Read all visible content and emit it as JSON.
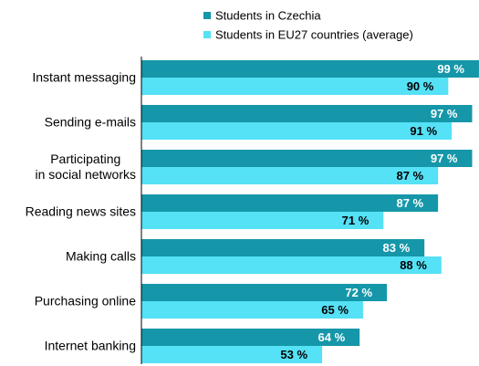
{
  "chart_data": {
    "type": "hbar",
    "categories": [
      "Instant messaging",
      "Sending e-mails",
      "Participating\nin social networks",
      "Reading news sites",
      "Making calls",
      "Purchasing online",
      "Internet banking"
    ],
    "series": [
      {
        "name": "Students in Czechia",
        "color": "#1597a9",
        "values": [
          99,
          97,
          97,
          87,
          83,
          72,
          64
        ],
        "value_labels": [
          "99 %",
          "97 %",
          "97 %",
          "87 %",
          "83 %",
          "72 %",
          "64 %"
        ]
      },
      {
        "name": "Students in EU27 countries (average)",
        "color": "#55e1f6",
        "values": [
          90,
          91,
          87,
          71,
          88,
          65,
          53
        ],
        "value_labels": [
          "90 %",
          "91 %",
          "87 %",
          "71 %",
          "88 %",
          "65 %",
          "53 %"
        ]
      }
    ],
    "xlim": [
      0,
      100
    ],
    "legend": "top"
  }
}
